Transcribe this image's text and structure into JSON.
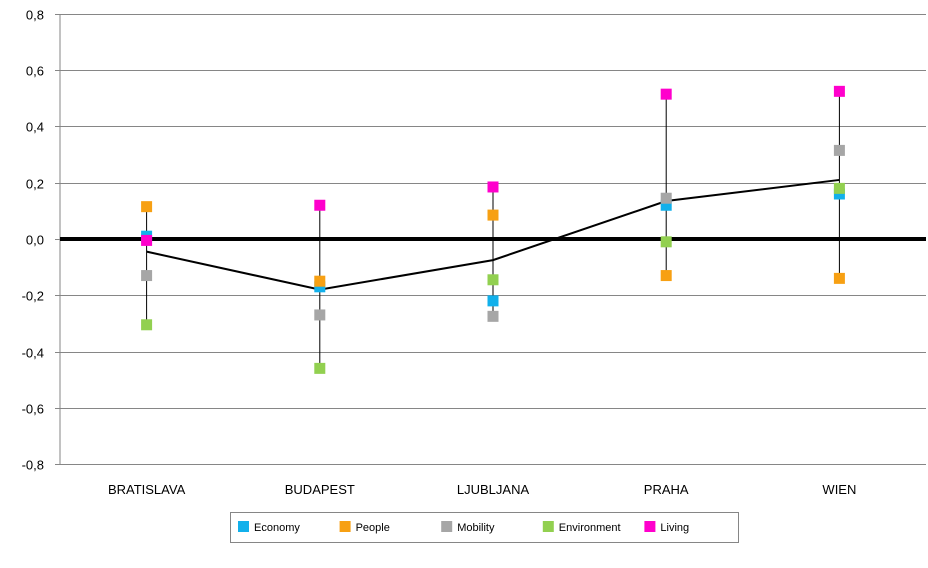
{
  "chart_data": {
    "type": "scatter",
    "categories": [
      "BRATISLAVA",
      "BUDAPEST",
      "LJUBLJANA",
      "PRAHA",
      "WIEN"
    ],
    "ylim": [
      -0.8,
      0.8
    ],
    "yticks": [
      -0.8,
      -0.6,
      -0.4,
      -0.2,
      0.0,
      0.2,
      0.4,
      0.6,
      0.8
    ],
    "ytick_labels": [
      "-0,8",
      "-0,6",
      "-0,4",
      "-0,2",
      "0,0",
      "0,2",
      "0,4",
      "0,6",
      "0,8"
    ],
    "grid": true,
    "legend_position": "bottom",
    "zero_line": true,
    "series": [
      {
        "name": "Economy",
        "color": "#12b0eb",
        "values": [
          0.01,
          -0.17,
          -0.22,
          0.12,
          0.16
        ]
      },
      {
        "name": "People",
        "color": "#f7a013",
        "values": [
          0.115,
          -0.15,
          0.085,
          -0.13,
          -0.14
        ]
      },
      {
        "name": "Mobility",
        "color": "#a6a6a6",
        "values": [
          -0.13,
          -0.27,
          -0.275,
          0.145,
          0.315
        ]
      },
      {
        "name": "Environment",
        "color": "#92d050",
        "values": [
          -0.305,
          -0.46,
          -0.145,
          -0.01,
          0.18
        ]
      },
      {
        "name": "Living",
        "color": "#ff00cc",
        "values": [
          -0.005,
          0.12,
          0.185,
          0.515,
          0.525
        ]
      }
    ],
    "average_line": {
      "values": [
        -0.045,
        -0.18,
        -0.075,
        0.135,
        0.21
      ],
      "color": "#000000"
    }
  }
}
